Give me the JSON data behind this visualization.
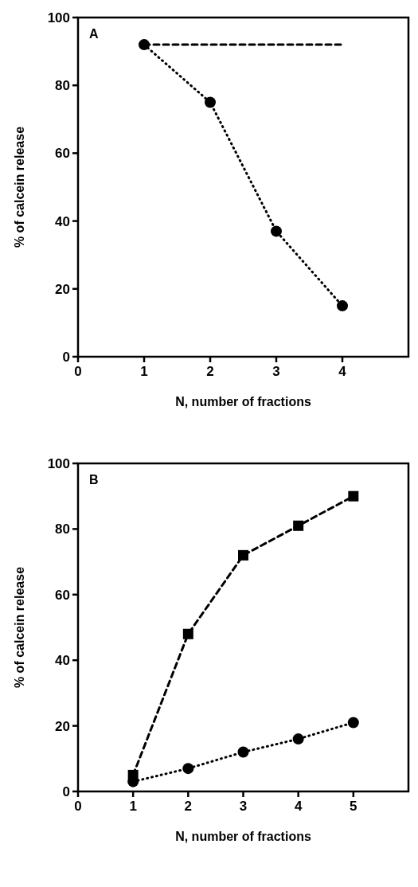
{
  "chart_data": [
    {
      "type": "line",
      "xlabel": "N, number of fractions",
      "ylabel": "% of calcein release",
      "annotations": [
        "A"
      ],
      "xlim": [
        0,
        5
      ],
      "xticks": [
        0,
        1,
        2,
        3,
        4
      ],
      "ylim": [
        0,
        100
      ],
      "yticks": [
        0,
        20,
        40,
        60,
        80,
        100
      ],
      "series": [
        {
          "color": "#000000",
          "x": [
            1,
            2,
            3,
            4
          ],
          "values": [
            92,
            75,
            37,
            15
          ],
          "marker": "circle",
          "line_style": "dotted"
        },
        {
          "color": "#000000",
          "x": [
            1,
            4
          ],
          "values": [
            92,
            92
          ],
          "marker": "none",
          "line_style": "dashed"
        }
      ]
    },
    {
      "type": "line",
      "xlabel": "N, number of fractions",
      "ylabel": "% of calcein release",
      "annotations": [
        "B"
      ],
      "xlim": [
        0,
        6
      ],
      "xticks": [
        0,
        1,
        2,
        3,
        4,
        5
      ],
      "ylim": [
        0,
        100
      ],
      "yticks": [
        0,
        20,
        40,
        60,
        80,
        100
      ],
      "series": [
        {
          "color": "#000000",
          "x": [
            1,
            2,
            3,
            4,
            5
          ],
          "values": [
            5,
            48,
            72,
            81,
            90
          ],
          "marker": "square",
          "line_style": "dashed"
        },
        {
          "color": "#000000",
          "x": [
            1,
            2,
            3,
            4,
            5
          ],
          "values": [
            3,
            7,
            12,
            16,
            21
          ],
          "marker": "circle",
          "line_style": "dotted"
        }
      ]
    }
  ]
}
